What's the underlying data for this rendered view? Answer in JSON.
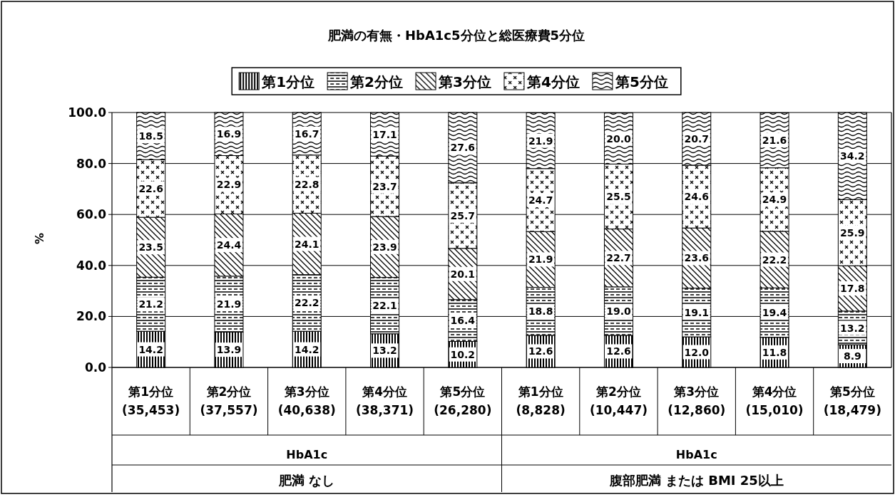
{
  "chart_data": {
    "type": "bar",
    "stacked": true,
    "title": "肥満の有無・HbA1c5分位と総医療費5分位",
    "ylabel": "%",
    "categories": [
      "第1分位\n(35,453)",
      "第2分位\n(37,557)",
      "第3分位\n(40,638)",
      "第4分位\n(38,371)",
      "第5分位\n(26,280)",
      "第1分位\n(8,828)",
      "第2分位\n(10,447)",
      "第3分位\n(12,860)",
      "第4分位\n(15,010)",
      "第5分位\n(18,479)"
    ],
    "annotations": [
      "HbA1c",
      "肥満 なし",
      "HbA1c",
      "腹部肥満 または BMI 25以上"
    ],
    "ylim": [
      0,
      100
    ],
    "yticks": [
      {
        "value": 0,
        "label": "0.0"
      },
      {
        "value": 20,
        "label": "20.0"
      },
      {
        "value": 40,
        "label": "40.0"
      },
      {
        "value": 60,
        "label": "60.0"
      },
      {
        "value": 80,
        "label": "80.0"
      },
      {
        "value": 100,
        "label": "100.0"
      }
    ],
    "grid": "y",
    "legend": "top",
    "series": [
      {
        "name": "第1分位",
        "color": "#000000",
        "values": [
          14.2,
          13.9,
          14.2,
          13.2,
          10.2,
          12.6,
          12.6,
          12.0,
          11.8,
          8.9
        ],
        "value_labels": [
          "14.2",
          "13.9",
          "14.2",
          "13.2",
          "10.2",
          "12.6",
          "12.6",
          "12.0",
          "11.8",
          "8.9"
        ]
      },
      {
        "name": "第2分位",
        "color": "#000000",
        "values": [
          21.2,
          21.9,
          22.2,
          22.1,
          16.4,
          18.8,
          19.0,
          19.1,
          19.4,
          13.2
        ],
        "value_labels": [
          "21.2",
          "21.9",
          "22.2",
          "22.1",
          "16.4",
          "18.8",
          "19.0",
          "19.1",
          "19.4",
          "13.2"
        ]
      },
      {
        "name": "第3分位",
        "color": "#000000",
        "values": [
          23.5,
          24.4,
          24.1,
          23.9,
          20.1,
          21.9,
          22.7,
          23.6,
          22.2,
          17.8
        ],
        "value_labels": [
          "23.5",
          "24.4",
          "24.1",
          "23.9",
          "20.1",
          "21.9",
          "22.7",
          "23.6",
          "22.2",
          "17.8"
        ]
      },
      {
        "name": "第4分位",
        "color": "#000000",
        "values": [
          22.6,
          22.9,
          22.8,
          23.7,
          25.7,
          24.7,
          25.5,
          24.6,
          24.9,
          25.9
        ],
        "value_labels": [
          "22.6",
          "22.9",
          "22.8",
          "23.7",
          "25.7",
          "24.7",
          "25.5",
          "24.6",
          "24.9",
          "25.9"
        ]
      },
      {
        "name": "第5分位",
        "color": "#000000",
        "values": [
          18.5,
          16.9,
          16.7,
          17.1,
          27.6,
          21.9,
          20.0,
          20.7,
          21.6,
          34.2
        ],
        "value_labels": [
          "18.5",
          "16.9",
          "16.7",
          "17.1",
          "27.6",
          "21.9",
          "20.0",
          "20.7",
          "21.6",
          "34.2"
        ]
      }
    ]
  }
}
